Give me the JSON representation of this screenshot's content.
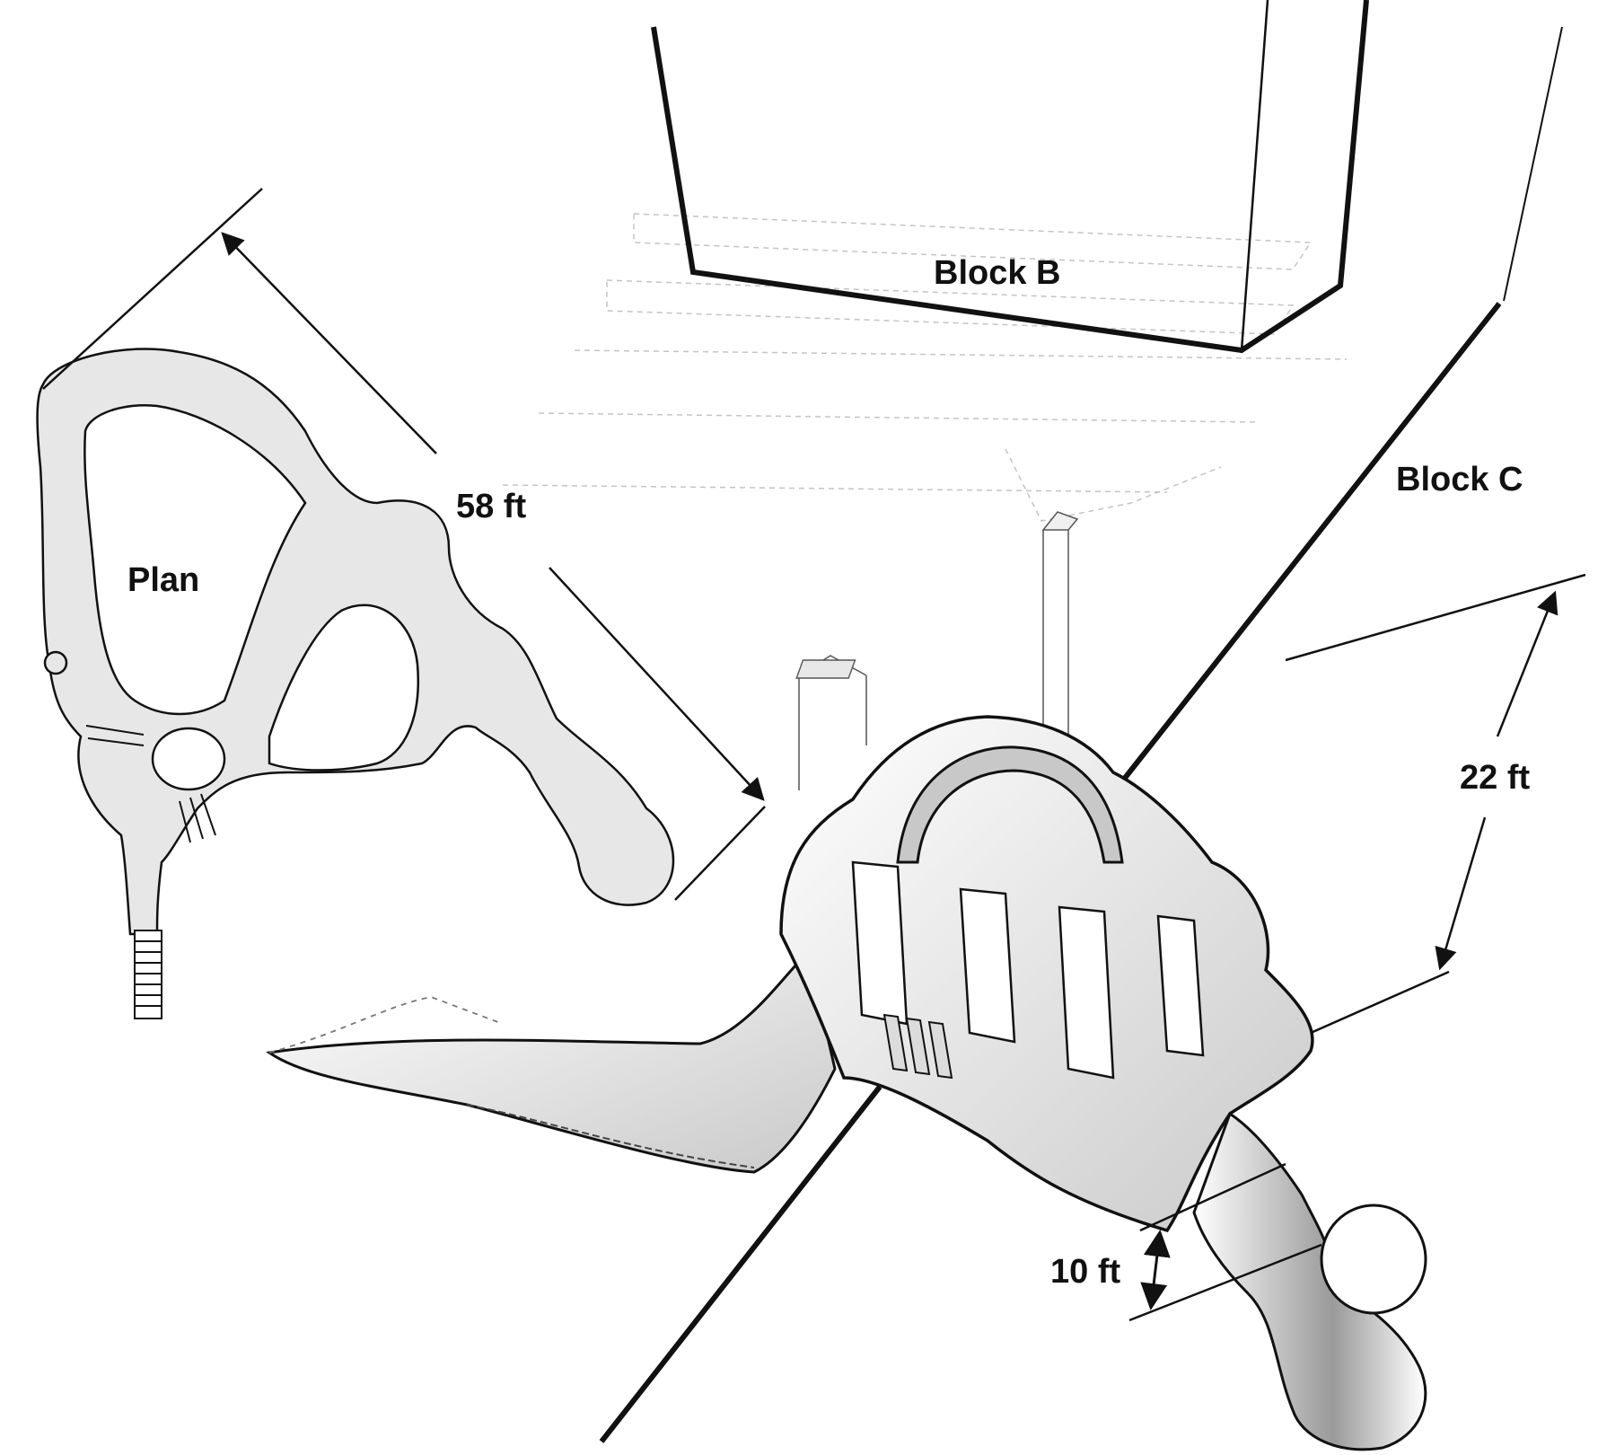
{
  "labels": {
    "block_b": "Block B",
    "block_c": "Block C",
    "plan": "Plan",
    "dim_58": "58 ft",
    "dim_22": "22 ft",
    "dim_10": "10 ft"
  },
  "colors": {
    "ink": "#111111",
    "shade": "#d6d6d6",
    "paper": "#ffffff",
    "ghost": "#b8b8b8"
  }
}
